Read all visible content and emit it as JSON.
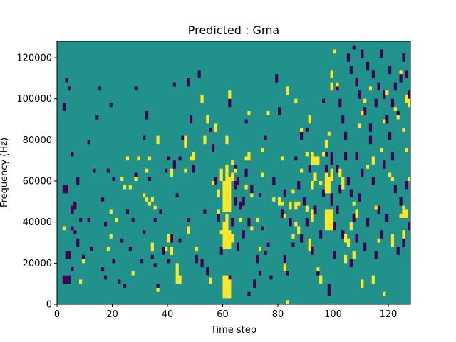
{
  "chart_data": {
    "type": "heatmap",
    "title": "Predicted : Gma",
    "xlabel": "Time step",
    "ylabel": "Frequency (Hz)",
    "xlim": [
      0,
      128
    ],
    "ylim": [
      0,
      128000
    ],
    "x_ticks": [
      0,
      20,
      40,
      60,
      80,
      100,
      120
    ],
    "y_ticks": [
      0,
      20000,
      40000,
      60000,
      80000,
      100000,
      120000
    ],
    "x_tick_labels": [
      "0",
      "20",
      "40",
      "60",
      "80",
      "100",
      "120"
    ],
    "y_tick_labels": [
      "0",
      "20000",
      "40000",
      "60000",
      "80000",
      "100000",
      "120000"
    ],
    "grid": false,
    "legend": false,
    "colormap": "viridis",
    "colors": {
      "background": "#21918c",
      "low": "#440154",
      "high": "#fde725"
    },
    "n_time_steps": 128,
    "n_freq_bins": 128,
    "bin_hz": 1000,
    "background_value": 0,
    "high_cells": [
      [
        60,
        3,
        14
      ],
      [
        61,
        3,
        14
      ],
      [
        62,
        3,
        12
      ],
      [
        60,
        27,
        40
      ],
      [
        61,
        27,
        44
      ],
      [
        62,
        27,
        36
      ],
      [
        63,
        30,
        34
      ],
      [
        60,
        45,
        60
      ],
      [
        61,
        45,
        68
      ],
      [
        62,
        45,
        62
      ],
      [
        63,
        60,
        64
      ],
      [
        58,
        52,
        56
      ],
      [
        59,
        60,
        66
      ],
      [
        63,
        68,
        70
      ],
      [
        64,
        64,
        66
      ],
      [
        70,
        36,
        38
      ],
      [
        70,
        52,
        54
      ],
      [
        66,
        40,
        42
      ],
      [
        56,
        58,
        60
      ],
      [
        55,
        10,
        13
      ],
      [
        47,
        34,
        38
      ],
      [
        43,
        10,
        20
      ],
      [
        44,
        10,
        14
      ],
      [
        41,
        24,
        28
      ],
      [
        36,
        6,
        8
      ],
      [
        34,
        26,
        30
      ],
      [
        32,
        50,
        52
      ],
      [
        33,
        48,
        50
      ],
      [
        90,
        45,
        48
      ],
      [
        91,
        26,
        32
      ],
      [
        92,
        56,
        60
      ],
      [
        92,
        68,
        74
      ],
      [
        94,
        68,
        72
      ],
      [
        94,
        16,
        18
      ],
      [
        95,
        10,
        14
      ],
      [
        97,
        36,
        46
      ],
      [
        98,
        36,
        46
      ],
      [
        99,
        36,
        46
      ],
      [
        97,
        54,
        64
      ],
      [
        98,
        54,
        62
      ],
      [
        99,
        60,
        66
      ],
      [
        93,
        60,
        64
      ],
      [
        92,
        40,
        46
      ],
      [
        87,
        34,
        38
      ],
      [
        86,
        46,
        50
      ],
      [
        85,
        32,
        34
      ],
      [
        86,
        38,
        40
      ],
      [
        81,
        48,
        50
      ],
      [
        82,
        16,
        20
      ],
      [
        83,
        0,
        2
      ],
      [
        103,
        56,
        58
      ],
      [
        102,
        62,
        66
      ],
      [
        104,
        30,
        34
      ],
      [
        107,
        22,
        26
      ],
      [
        110,
        8,
        12
      ],
      [
        114,
        10,
        14
      ],
      [
        114,
        68,
        72
      ],
      [
        118,
        4,
        6
      ],
      [
        121,
        28,
        34
      ],
      [
        124,
        42,
        44
      ],
      [
        125,
        32,
        36
      ],
      [
        125,
        42,
        48
      ],
      [
        126,
        42,
        46
      ],
      [
        127,
        96,
        100
      ],
      [
        126,
        98,
        102
      ],
      [
        124,
        112,
        114
      ],
      [
        2,
        36,
        38
      ],
      [
        8,
        10,
        12
      ],
      [
        9,
        20,
        22
      ],
      [
        18,
        26,
        28
      ],
      [
        19,
        32,
        34
      ],
      [
        19,
        44,
        46
      ],
      [
        21,
        40,
        42
      ],
      [
        23,
        60,
        62
      ],
      [
        24,
        56,
        58
      ],
      [
        25,
        70,
        72
      ],
      [
        26,
        56,
        58
      ],
      [
        27,
        14,
        16
      ],
      [
        28,
        60,
        62
      ],
      [
        29,
        70,
        72
      ],
      [
        31,
        52,
        54
      ],
      [
        32,
        64,
        66
      ],
      [
        33,
        70,
        72
      ],
      [
        34,
        50,
        52
      ],
      [
        35,
        46,
        48
      ],
      [
        36,
        78,
        82
      ],
      [
        39,
        26,
        28
      ],
      [
        40,
        30,
        34
      ],
      [
        41,
        62,
        66
      ],
      [
        41,
        24,
        28
      ],
      [
        46,
        64,
        66
      ],
      [
        46,
        76,
        82
      ],
      [
        48,
        70,
        72
      ],
      [
        49,
        70,
        74
      ],
      [
        50,
        26,
        28
      ],
      [
        52,
        98,
        102
      ],
      [
        53,
        78,
        82
      ],
      [
        54,
        88,
        92
      ],
      [
        57,
        84,
        88
      ],
      [
        58,
        44,
        46
      ],
      [
        59,
        34,
        36
      ],
      [
        61,
        78,
        82
      ],
      [
        62,
        100,
        104
      ],
      [
        68,
        56,
        58
      ],
      [
        68,
        70,
        72
      ],
      [
        69,
        70,
        74
      ],
      [
        69,
        92,
        94
      ],
      [
        72,
        40,
        42
      ],
      [
        73,
        26,
        28
      ],
      [
        74,
        62,
        64
      ],
      [
        74,
        74,
        76
      ],
      [
        76,
        92,
        94
      ],
      [
        78,
        50,
        52
      ],
      [
        80,
        48,
        52
      ],
      [
        81,
        70,
        72
      ],
      [
        82,
        42,
        44
      ],
      [
        83,
        102,
        106
      ],
      [
        84,
        46,
        50
      ],
      [
        85,
        54,
        56
      ],
      [
        86,
        98,
        100
      ],
      [
        87,
        48,
        50
      ],
      [
        88,
        64,
        66
      ],
      [
        88,
        84,
        86
      ],
      [
        90,
        72,
        74
      ],
      [
        91,
        88,
        92
      ],
      [
        92,
        68,
        70
      ],
      [
        93,
        68,
        72
      ],
      [
        95,
        58,
        60
      ],
      [
        96,
        72,
        74
      ],
      [
        97,
        76,
        80
      ],
      [
        98,
        82,
        84
      ],
      [
        99,
        104,
        108
      ],
      [
        99,
        110,
        114
      ],
      [
        100,
        122,
        124
      ],
      [
        101,
        106,
        108
      ],
      [
        103,
        58,
        62
      ],
      [
        104,
        20,
        24
      ],
      [
        105,
        28,
        32
      ],
      [
        106,
        36,
        40
      ],
      [
        107,
        48,
        50
      ],
      [
        108,
        42,
        46
      ],
      [
        109,
        86,
        88
      ],
      [
        110,
        92,
        94
      ],
      [
        111,
        98,
        100
      ],
      [
        112,
        66,
        68
      ],
      [
        113,
        104,
        106
      ],
      [
        115,
        46,
        48
      ],
      [
        116,
        30,
        32
      ],
      [
        117,
        74,
        76
      ],
      [
        118,
        88,
        90
      ],
      [
        119,
        102,
        104
      ],
      [
        120,
        62,
        64
      ],
      [
        121,
        60,
        62
      ],
      [
        122,
        94,
        96
      ],
      [
        123,
        90,
        92
      ],
      [
        125,
        84,
        86
      ],
      [
        126,
        74,
        76
      ],
      [
        127,
        60,
        62
      ]
    ],
    "low_cells": [
      [
        2,
        10,
        14
      ],
      [
        3,
        10,
        14
      ],
      [
        4,
        10,
        14
      ],
      [
        3,
        22,
        26
      ],
      [
        4,
        22,
        26
      ],
      [
        2,
        54,
        58
      ],
      [
        3,
        54,
        58
      ],
      [
        2,
        94,
        98
      ],
      [
        3,
        108,
        110
      ],
      [
        4,
        104,
        106
      ],
      [
        5,
        16,
        18
      ],
      [
        5,
        36,
        38
      ],
      [
        5,
        44,
        48
      ],
      [
        5,
        72,
        74
      ],
      [
        6,
        34,
        36
      ],
      [
        6,
        46,
        50
      ],
      [
        7,
        28,
        32
      ],
      [
        7,
        58,
        62
      ],
      [
        8,
        40,
        42
      ],
      [
        9,
        22,
        24
      ],
      [
        11,
        40,
        42
      ],
      [
        11,
        78,
        80
      ],
      [
        12,
        26,
        28
      ],
      [
        13,
        64,
        66
      ],
      [
        14,
        90,
        92
      ],
      [
        15,
        104,
        106
      ],
      [
        16,
        16,
        18
      ],
      [
        16,
        50,
        52
      ],
      [
        17,
        12,
        14
      ],
      [
        17,
        38,
        40
      ],
      [
        18,
        64,
        66
      ],
      [
        19,
        96,
        98
      ],
      [
        20,
        20,
        22
      ],
      [
        20,
        60,
        62
      ],
      [
        22,
        10,
        12
      ],
      [
        23,
        30,
        32
      ],
      [
        24,
        8,
        10
      ],
      [
        25,
        44,
        46
      ],
      [
        26,
        26,
        28
      ],
      [
        27,
        40,
        42
      ],
      [
        28,
        62,
        64
      ],
      [
        28,
        104,
        106
      ],
      [
        30,
        20,
        22
      ],
      [
        31,
        34,
        36
      ],
      [
        31,
        80,
        82
      ],
      [
        32,
        90,
        94
      ],
      [
        33,
        60,
        62
      ],
      [
        34,
        22,
        24
      ],
      [
        35,
        18,
        20
      ],
      [
        35,
        40,
        42
      ],
      [
        36,
        8,
        10
      ],
      [
        37,
        44,
        46
      ],
      [
        38,
        24,
        28
      ],
      [
        39,
        64,
        66
      ],
      [
        40,
        20,
        22
      ],
      [
        40,
        70,
        72
      ],
      [
        41,
        30,
        34
      ],
      [
        42,
        106,
        108
      ],
      [
        42,
        66,
        70
      ],
      [
        43,
        52,
        54
      ],
      [
        44,
        30,
        32
      ],
      [
        44,
        70,
        72
      ],
      [
        45,
        80,
        82
      ],
      [
        46,
        76,
        78
      ],
      [
        47,
        40,
        42
      ],
      [
        47,
        106,
        110
      ],
      [
        48,
        88,
        92
      ],
      [
        49,
        64,
        68
      ],
      [
        50,
        20,
        24
      ],
      [
        51,
        110,
        114
      ],
      [
        52,
        18,
        22
      ],
      [
        53,
        44,
        46
      ],
      [
        54,
        14,
        18
      ],
      [
        55,
        84,
        86
      ],
      [
        56,
        74,
        78
      ],
      [
        57,
        58,
        62
      ],
      [
        58,
        40,
        44
      ],
      [
        59,
        24,
        28
      ],
      [
        60,
        4,
        6
      ],
      [
        62,
        12,
        14
      ],
      [
        62,
        96,
        100
      ],
      [
        63,
        38,
        42
      ],
      [
        64,
        48,
        52
      ],
      [
        64,
        56,
        60
      ],
      [
        64,
        64,
        68
      ],
      [
        65,
        58,
        62
      ],
      [
        65,
        26,
        30
      ],
      [
        66,
        46,
        50
      ],
      [
        67,
        32,
        36
      ],
      [
        67,
        48,
        52
      ],
      [
        68,
        62,
        66
      ],
      [
        68,
        88,
        90
      ],
      [
        69,
        38,
        42
      ],
      [
        69,
        4,
        6
      ],
      [
        70,
        54,
        58
      ],
      [
        71,
        8,
        12
      ],
      [
        72,
        20,
        24
      ],
      [
        73,
        14,
        16
      ],
      [
        73,
        52,
        54
      ],
      [
        74,
        36,
        38
      ],
      [
        75,
        24,
        26
      ],
      [
        75,
        80,
        82
      ],
      [
        76,
        28,
        30
      ],
      [
        77,
        12,
        14
      ],
      [
        78,
        58,
        62
      ],
      [
        79,
        108,
        112
      ],
      [
        80,
        92,
        96
      ],
      [
        81,
        42,
        46
      ],
      [
        82,
        20,
        24
      ],
      [
        82,
        52,
        56
      ],
      [
        83,
        14,
        16
      ],
      [
        84,
        38,
        42
      ],
      [
        85,
        28,
        30
      ],
      [
        86,
        70,
        72
      ],
      [
        87,
        56,
        60
      ],
      [
        88,
        30,
        34
      ],
      [
        88,
        80,
        84
      ],
      [
        89,
        48,
        52
      ],
      [
        90,
        38,
        42
      ],
      [
        90,
        84,
        86
      ],
      [
        91,
        64,
        68
      ],
      [
        92,
        24,
        28
      ],
      [
        93,
        44,
        48
      ],
      [
        94,
        14,
        18
      ],
      [
        95,
        32,
        36
      ],
      [
        96,
        52,
        56
      ],
      [
        96,
        98,
        100
      ],
      [
        97,
        64,
        68
      ],
      [
        97,
        72,
        74
      ],
      [
        98,
        60,
        62
      ],
      [
        98,
        4,
        10
      ],
      [
        99,
        48,
        54
      ],
      [
        99,
        68,
        74
      ],
      [
        100,
        36,
        40
      ],
      [
        100,
        22,
        26
      ],
      [
        101,
        44,
        48
      ],
      [
        101,
        64,
        68
      ],
      [
        102,
        54,
        58
      ],
      [
        103,
        32,
        36
      ],
      [
        104,
        70,
        74
      ],
      [
        105,
        58,
        62
      ],
      [
        106,
        52,
        56
      ],
      [
        106,
        18,
        22
      ],
      [
        107,
        40,
        44
      ],
      [
        108,
        30,
        34
      ],
      [
        108,
        70,
        74
      ],
      [
        109,
        50,
        54
      ],
      [
        110,
        62,
        66
      ],
      [
        111,
        26,
        30
      ],
      [
        112,
        38,
        42
      ],
      [
        113,
        78,
        82
      ],
      [
        114,
        58,
        62
      ],
      [
        115,
        22,
        26
      ],
      [
        116,
        44,
        48
      ],
      [
        117,
        32,
        36
      ],
      [
        118,
        66,
        70
      ],
      [
        119,
        40,
        44
      ],
      [
        120,
        80,
        84
      ],
      [
        121,
        70,
        74
      ],
      [
        122,
        54,
        58
      ],
      [
        123,
        24,
        28
      ],
      [
        124,
        48,
        52
      ],
      [
        125,
        28,
        32
      ],
      [
        126,
        56,
        60
      ],
      [
        127,
        36,
        40
      ],
      [
        101,
        104,
        108
      ],
      [
        102,
        96,
        100
      ],
      [
        103,
        88,
        92
      ],
      [
        104,
        80,
        84
      ],
      [
        105,
        118,
        122
      ],
      [
        106,
        112,
        116
      ],
      [
        107,
        124,
        126
      ],
      [
        108,
        106,
        110
      ],
      [
        109,
        100,
        104
      ],
      [
        110,
        120,
        124
      ],
      [
        111,
        92,
        96
      ],
      [
        112,
        114,
        118
      ],
      [
        113,
        84,
        88
      ],
      [
        114,
        110,
        114
      ],
      [
        115,
        96,
        100
      ],
      [
        116,
        104,
        108
      ],
      [
        117,
        120,
        124
      ],
      [
        118,
        100,
        104
      ],
      [
        119,
        88,
        92
      ],
      [
        120,
        112,
        116
      ],
      [
        121,
        96,
        100
      ],
      [
        122,
        104,
        108
      ],
      [
        123,
        90,
        94
      ],
      [
        124,
        108,
        112
      ],
      [
        125,
        118,
        122
      ],
      [
        126,
        110,
        114
      ],
      [
        127,
        100,
        104
      ]
    ]
  }
}
